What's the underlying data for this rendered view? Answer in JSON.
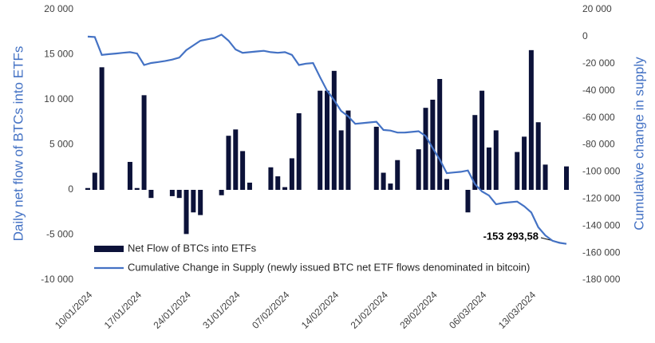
{
  "chart_data": {
    "type": "combo",
    "y_label": "Daily net flow of BTCs into ETFs",
    "y2_label": "Cumulative change in supply",
    "categories": [
      "10/01/2024",
      null,
      null,
      null,
      null,
      null,
      null,
      "17/01/2024",
      null,
      null,
      null,
      null,
      null,
      null,
      "24/01/2024",
      null,
      null,
      null,
      null,
      null,
      null,
      "31/01/2024",
      null,
      null,
      null,
      null,
      null,
      null,
      "07/02/2024",
      null,
      null,
      null,
      null,
      null,
      null,
      "14/02/2024",
      null,
      null,
      null,
      null,
      null,
      null,
      "21/02/2024",
      null,
      null,
      null,
      null,
      null,
      null,
      "28/02/2024",
      null,
      null,
      null,
      null,
      null,
      null,
      "06/03/2024",
      null,
      null,
      null,
      null,
      null,
      null,
      "13/03/2024",
      null,
      null,
      null,
      null,
      null
    ],
    "series": [
      {
        "name": "Net Flow of BTCs into ETFs",
        "type": "bar",
        "color": "#0c1239",
        "values": [
          200,
          1900,
          13600,
          null,
          null,
          null,
          3100,
          200,
          10500,
          -900,
          null,
          null,
          -700,
          -900,
          -4900,
          -2500,
          -2800,
          null,
          null,
          -600,
          6000,
          6700,
          4300,
          800,
          null,
          null,
          2500,
          1500,
          300,
          3500,
          8500,
          null,
          null,
          11000,
          11000,
          13200,
          6600,
          8800,
          null,
          null,
          null,
          7000,
          1900,
          700,
          3300,
          null,
          null,
          4500,
          9100,
          10000,
          12300,
          1200,
          null,
          null,
          -2500,
          8300,
          11000,
          4700,
          6600,
          null,
          null,
          4200,
          5900,
          15500,
          7500,
          2800,
          null,
          null,
          2600
        ]
      },
      {
        "name": "Cumulative Change in Supply (newly issued BTC net ETF flows denominated in bitcoin)",
        "type": "line",
        "axis": "y2",
        "color": "#4472c4",
        "values": [
          0,
          -300,
          -13500,
          -13000,
          -12500,
          -12000,
          -11500,
          -12500,
          -21000,
          -19500,
          -18800,
          -18000,
          -17000,
          -15500,
          -10000,
          -6500,
          -3000,
          -2000,
          -1000,
          1500,
          -3000,
          -9500,
          -12000,
          -11500,
          -11000,
          -10500,
          -11500,
          -12000,
          -11500,
          -13500,
          -21000,
          -20000,
          -19500,
          -30000,
          -40000,
          -47000,
          -55000,
          -59000,
          -64500,
          -64000,
          -63500,
          -63000,
          -69000,
          -69500,
          -71000,
          -71000,
          -70500,
          -70000,
          -73500,
          -82500,
          -91000,
          -101000,
          -100500,
          -100000,
          -99000,
          -109000,
          -114500,
          -117500,
          -124000,
          -123000,
          -122500,
          -122000,
          -125500,
          -130000,
          -141000,
          -147000,
          -151000,
          -152500,
          -153293.58
        ],
        "value_labels": [
          null,
          null,
          null,
          null,
          null,
          null,
          null,
          null,
          null,
          null,
          null,
          null,
          null,
          null,
          null,
          null,
          null,
          null,
          null,
          null,
          null,
          null,
          null,
          null,
          null,
          null,
          null,
          null,
          null,
          null,
          null,
          null,
          null,
          null,
          null,
          null,
          null,
          null,
          null,
          null,
          null,
          null,
          null,
          null,
          null,
          null,
          null,
          null,
          null,
          null,
          null,
          null,
          null,
          null,
          null,
          null,
          null,
          null,
          null,
          null,
          null,
          null,
          null,
          null,
          null,
          null,
          null,
          null,
          "-153 293,58"
        ]
      }
    ],
    "ylim": [
      -10000,
      20000
    ],
    "yticks": [
      {
        "value": -10000,
        "label": "-10 000"
      },
      {
        "value": -5000,
        "label": "-5 000"
      },
      0,
      {
        "value": 5000,
        "label": "5 000"
      },
      {
        "value": 10000,
        "label": "10 000"
      },
      {
        "value": 15000,
        "label": "15 000"
      },
      {
        "value": 20000,
        "label": "20 000"
      }
    ],
    "y2lim": [
      -180000,
      20000
    ],
    "y2ticks": [
      {
        "value": -180000,
        "label": "-180 000"
      },
      {
        "value": -160000,
        "label": "-160 000"
      },
      {
        "value": -140000,
        "label": "-140 000"
      },
      {
        "value": -120000,
        "label": "-120 000"
      },
      {
        "value": -100000,
        "label": "-100 000"
      },
      {
        "value": -80000,
        "label": "-80 000"
      },
      {
        "value": -60000,
        "label": "-60 000"
      },
      {
        "value": -40000,
        "label": "-40 000"
      },
      {
        "value": -20000,
        "label": "-20 000"
      },
      0,
      {
        "value": 20000,
        "label": "20 000"
      }
    ],
    "grid": false,
    "legend": "bottom-left"
  }
}
